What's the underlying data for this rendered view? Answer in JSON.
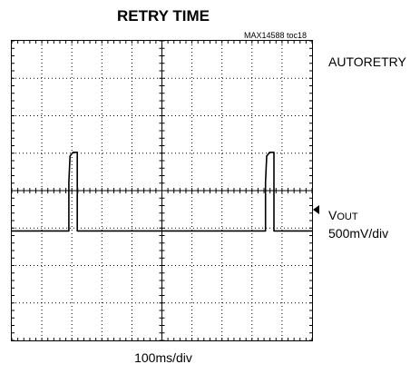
{
  "title": "RETRY TIME",
  "figure_id": "MAX14588 toc18",
  "mode_label": "AUTORETRY",
  "channel": {
    "name_main": "V",
    "name_sub": "OUT",
    "scale": "500mV/div"
  },
  "time_scale": "100ms/div",
  "chart_data": {
    "type": "line",
    "title": "RETRY TIME",
    "xlabel": "100ms/div",
    "ylabel": "VOUT 500mV/div",
    "grid": true,
    "divisions": {
      "x": 10,
      "y": 8
    },
    "x_units": "ms",
    "y_units": "mV",
    "x_range": [
      0,
      1000
    ],
    "series": [
      {
        "name": "VOUT",
        "x": [
          0,
          190,
          190,
          194,
          204,
          208,
          218,
          218,
          845,
          845,
          849,
          859,
          863,
          873,
          873,
          1000
        ],
        "y": [
          -150,
          -150,
          500,
          850,
          900,
          900,
          900,
          -150,
          -150,
          500,
          850,
          900,
          900,
          900,
          -150,
          -150
        ]
      }
    ]
  }
}
